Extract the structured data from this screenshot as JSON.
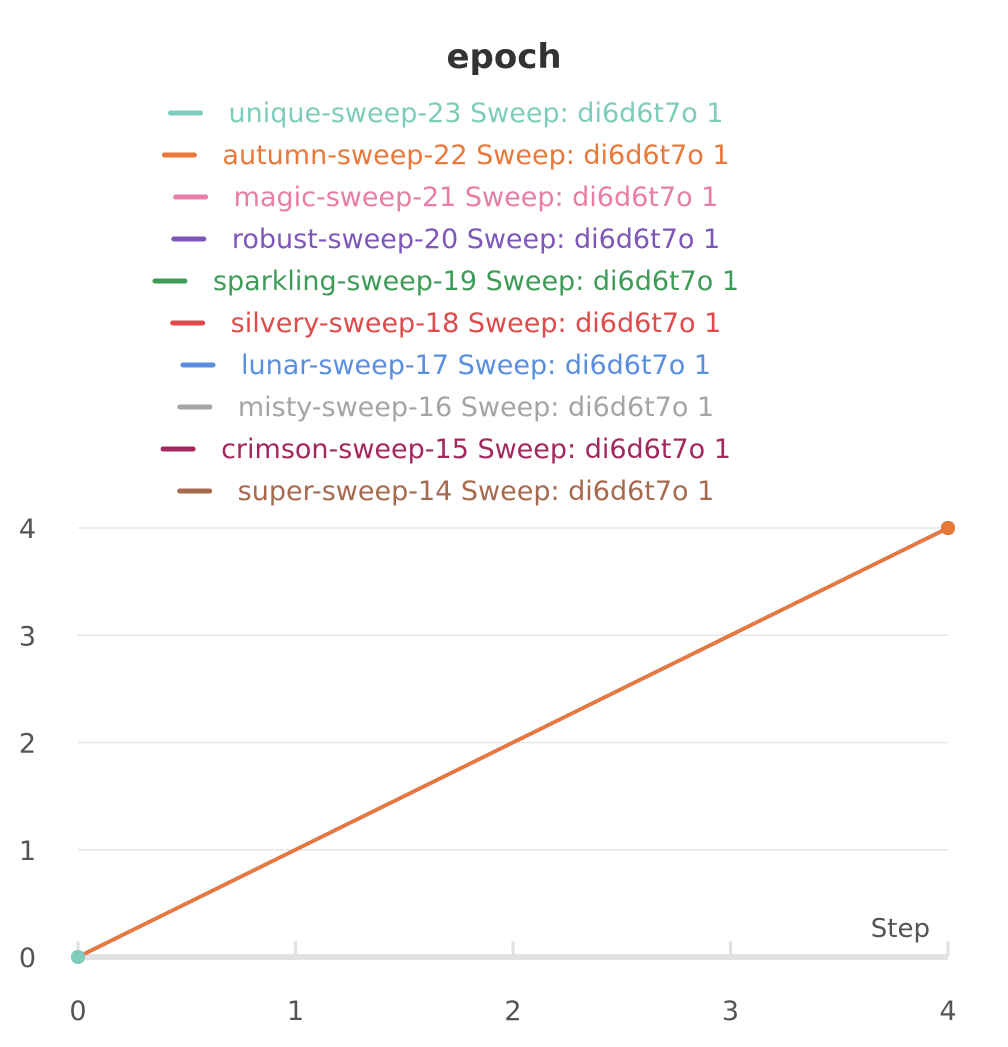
{
  "chart_data": {
    "type": "line",
    "title": "epoch",
    "xlabel": "Step",
    "ylabel": "",
    "xlim": [
      0,
      4
    ],
    "ylim": [
      0,
      4
    ],
    "xticks": [
      0,
      1,
      2,
      3,
      4
    ],
    "yticks": [
      0,
      1,
      2,
      3,
      4
    ],
    "grid": true,
    "legend_position": "top",
    "series": [
      {
        "name": "unique-sweep-23 Sweep: di6d6t7o 1",
        "color": "#7ecdbb",
        "points": [
          [
            0,
            0
          ]
        ]
      },
      {
        "name": "autumn-sweep-22 Sweep: di6d6t7o 1",
        "color": "#e9793b",
        "points": [
          [
            0,
            0
          ],
          [
            4,
            4
          ]
        ]
      },
      {
        "name": "magic-sweep-21 Sweep: di6d6t7o 1",
        "color": "#e87ea8",
        "points": [
          [
            0,
            0
          ],
          [
            4,
            4
          ]
        ]
      },
      {
        "name": "robust-sweep-20 Sweep: di6d6t7o 1",
        "color": "#7e57b8",
        "points": [
          [
            0,
            0
          ],
          [
            4,
            4
          ]
        ]
      },
      {
        "name": "sparkling-sweep-19 Sweep: di6d6t7o 1",
        "color": "#3f9b58",
        "points": [
          [
            0,
            0
          ],
          [
            4,
            4
          ]
        ]
      },
      {
        "name": "silvery-sweep-18 Sweep: di6d6t7o 1",
        "color": "#df4b4b",
        "points": [
          [
            0,
            0
          ],
          [
            4,
            4
          ]
        ]
      },
      {
        "name": "lunar-sweep-17 Sweep: di6d6t7o 1",
        "color": "#5a8fe0",
        "points": [
          [
            0,
            0
          ],
          [
            4,
            4
          ]
        ]
      },
      {
        "name": "misty-sweep-16 Sweep: di6d6t7o 1",
        "color": "#a3a6a8",
        "points": [
          [
            0,
            0
          ],
          [
            4,
            4
          ]
        ]
      },
      {
        "name": "crimson-sweep-15 Sweep: di6d6t7o 1",
        "color": "#a3285e",
        "points": [
          [
            0,
            0
          ],
          [
            4,
            4
          ]
        ]
      },
      {
        "name": "super-sweep-14 Sweep: di6d6t7o 1",
        "color": "#a86a4e",
        "points": [
          [
            0,
            0
          ],
          [
            4,
            4
          ]
        ]
      }
    ]
  }
}
